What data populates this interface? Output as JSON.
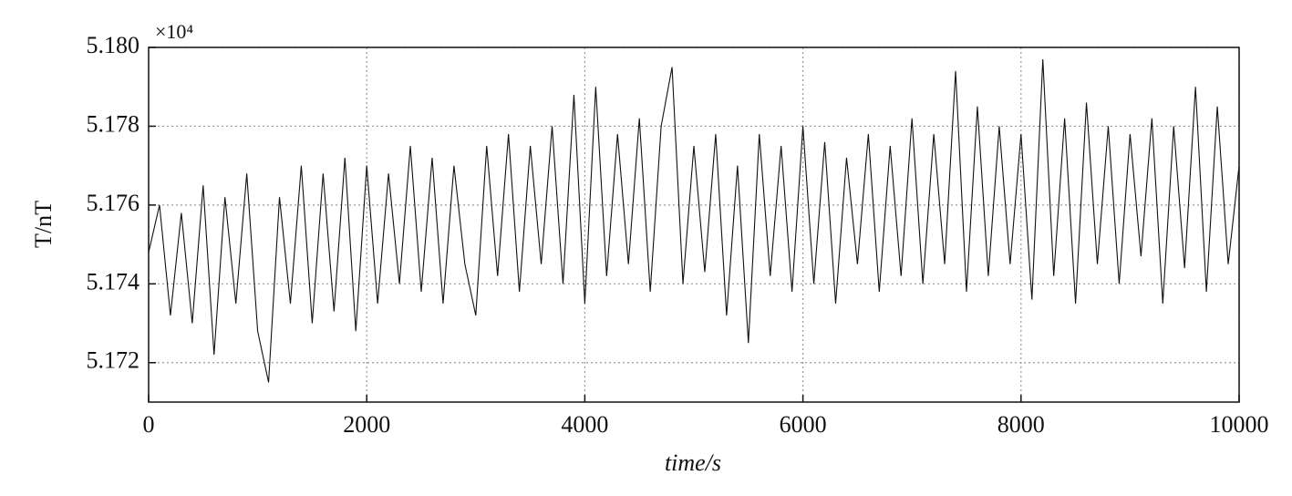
{
  "chart_data": {
    "type": "line",
    "xlabel": "time/s",
    "ylabel": "T/nT",
    "y_multiplier": "×10⁴",
    "xlim": [
      0,
      10000
    ],
    "xticks": [
      0,
      2000,
      4000,
      6000,
      8000,
      10000
    ],
    "ylim": [
      5.171,
      5.18
    ],
    "yticks": [
      5.172,
      5.174,
      5.176,
      5.178,
      {
        "value": 5.18,
        "label": "5.180"
      }
    ],
    "grid": true,
    "x": [
      0,
      100,
      200,
      300,
      400,
      500,
      600,
      700,
      800,
      900,
      1000,
      1100,
      1200,
      1300,
      1400,
      1500,
      1600,
      1700,
      1800,
      1900,
      2000,
      2100,
      2200,
      2300,
      2400,
      2500,
      2600,
      2700,
      2800,
      2900,
      3000,
      3100,
      3200,
      3300,
      3400,
      3500,
      3600,
      3700,
      3800,
      3900,
      4000,
      4100,
      4200,
      4300,
      4400,
      4500,
      4600,
      4700,
      4800,
      4900,
      5000,
      5100,
      5200,
      5300,
      5400,
      5500,
      5600,
      5700,
      5800,
      5900,
      6000,
      6100,
      6200,
      6300,
      6400,
      6500,
      6600,
      6700,
      6800,
      6900,
      7000,
      7100,
      7200,
      7300,
      7400,
      7500,
      7600,
      7700,
      7800,
      7900,
      8000,
      8100,
      8200,
      8300,
      8400,
      8500,
      8600,
      8700,
      8800,
      8900,
      9000,
      9100,
      9200,
      9300,
      9400,
      9500,
      9600,
      9700,
      9800,
      9900,
      10000
    ],
    "series": [
      {
        "color": "#111111",
        "values": [
          5.1748,
          5.176,
          5.1732,
          5.1758,
          5.173,
          5.1765,
          5.1722,
          5.1762,
          5.1735,
          5.1768,
          5.1728,
          5.1715,
          5.1762,
          5.1735,
          5.177,
          5.173,
          5.1768,
          5.1733,
          5.1772,
          5.1728,
          5.177,
          5.1735,
          5.1768,
          5.174,
          5.1775,
          5.1738,
          5.1772,
          5.1735,
          5.177,
          5.1745,
          5.1732,
          5.1775,
          5.1742,
          5.1778,
          5.1738,
          5.1775,
          5.1745,
          5.178,
          5.174,
          5.1788,
          5.1735,
          5.179,
          5.1742,
          5.1778,
          5.1745,
          5.1782,
          5.1738,
          5.178,
          5.1795,
          5.174,
          5.1775,
          5.1743,
          5.1778,
          5.1732,
          5.177,
          5.1725,
          5.1778,
          5.1742,
          5.1775,
          5.1738,
          5.178,
          5.174,
          5.1776,
          5.1735,
          5.1772,
          5.1745,
          5.1778,
          5.1738,
          5.1775,
          5.1742,
          5.1782,
          5.174,
          5.1778,
          5.1745,
          5.1794,
          5.1738,
          5.1785,
          5.1742,
          5.178,
          5.1745,
          5.1778,
          5.1736,
          5.1797,
          5.1742,
          5.1782,
          5.1735,
          5.1786,
          5.1745,
          5.178,
          5.174,
          5.1778,
          5.1747,
          5.1782,
          5.1735,
          5.178,
          5.1744,
          5.179,
          5.1738,
          5.1785,
          5.1745,
          5.177
        ]
      }
    ]
  }
}
